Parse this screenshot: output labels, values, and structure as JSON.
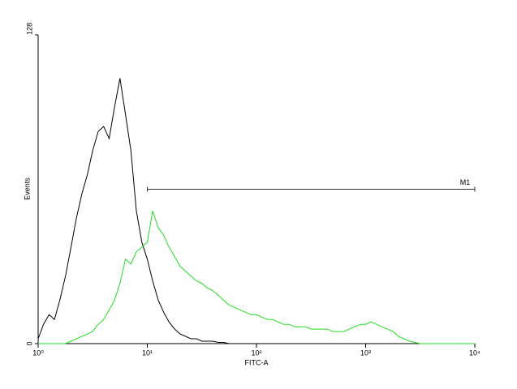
{
  "chart_data": {
    "type": "line",
    "xlabel": "FITC-A",
    "ylabel": "Events",
    "xscale": "log",
    "xlim": [
      1,
      10000
    ],
    "ylim": [
      0,
      128
    ],
    "xticks": [
      {
        "value": 1,
        "label": "10⁰"
      },
      {
        "value": 10,
        "label": "10¹"
      },
      {
        "value": 100,
        "label": "10²"
      },
      {
        "value": 1000,
        "label": "10³"
      },
      {
        "value": 10000,
        "label": "10⁴"
      }
    ],
    "yticks": [
      0,
      128
    ],
    "x": [
      1,
      1.12,
      1.26,
      1.41,
      1.58,
      1.78,
      2,
      2.24,
      2.51,
      2.82,
      3.16,
      3.55,
      3.98,
      4.47,
      5.01,
      5.62,
      6.31,
      7.08,
      7.94,
      8.91,
      10,
      11.2,
      12.6,
      14.1,
      15.8,
      17.8,
      20,
      22.4,
      25.1,
      28.2,
      31.6,
      35.5,
      39.8,
      44.7,
      50.1,
      56.2,
      63.1,
      70.8,
      79.4,
      89.1,
      100,
      112,
      126,
      141,
      158,
      178,
      200,
      224,
      251,
      282,
      316,
      355,
      398,
      447,
      501,
      562,
      631,
      708,
      794,
      891,
      1000,
      1120,
      1260,
      1410,
      1580,
      1780,
      2000,
      2240,
      2510,
      2820,
      3160,
      3550,
      3980,
      4470,
      5010,
      5620,
      6310,
      7080,
      7940,
      8910,
      10000
    ],
    "series": [
      {
        "color": "#000000",
        "values": [
          2,
          8,
          12,
          10,
          18,
          28,
          40,
          52,
          62,
          70,
          80,
          88,
          90,
          85,
          98,
          110,
          95,
          80,
          55,
          42,
          35,
          26,
          18,
          13,
          9,
          6,
          4,
          3,
          2,
          2,
          1,
          1,
          1,
          0.5,
          0.5,
          0,
          0,
          0,
          0,
          0,
          0,
          0,
          0,
          0,
          0,
          0,
          0,
          0,
          0,
          0,
          0,
          0,
          0,
          0,
          0,
          0,
          0,
          0,
          0,
          0,
          0,
          0,
          0,
          0,
          0,
          0,
          0,
          0,
          0,
          0,
          0,
          0,
          0,
          0,
          0,
          0,
          0,
          0,
          0,
          0,
          0
        ]
      },
      {
        "color": "#22dd22",
        "values": [
          0,
          0,
          0,
          0,
          0,
          0,
          1,
          2,
          3,
          4,
          5,
          8,
          10,
          14,
          18,
          25,
          35,
          33,
          38,
          40,
          42,
          55,
          48,
          45,
          40,
          36,
          32,
          30,
          28,
          26,
          25,
          23,
          22,
          20,
          18,
          16,
          15,
          14,
          13,
          12,
          12,
          11,
          10,
          10,
          9,
          8,
          8,
          7,
          7,
          7,
          6,
          6,
          6,
          6,
          5,
          5,
          5,
          6,
          7,
          8,
          8,
          9,
          8,
          7,
          6,
          5,
          3,
          2,
          1,
          0.5,
          0,
          0,
          0,
          0,
          0,
          0,
          0,
          0,
          0,
          0,
          0
        ]
      }
    ],
    "markers": [
      {
        "label": "M1",
        "x": [
          10,
          10000
        ],
        "y": 64
      }
    ]
  }
}
